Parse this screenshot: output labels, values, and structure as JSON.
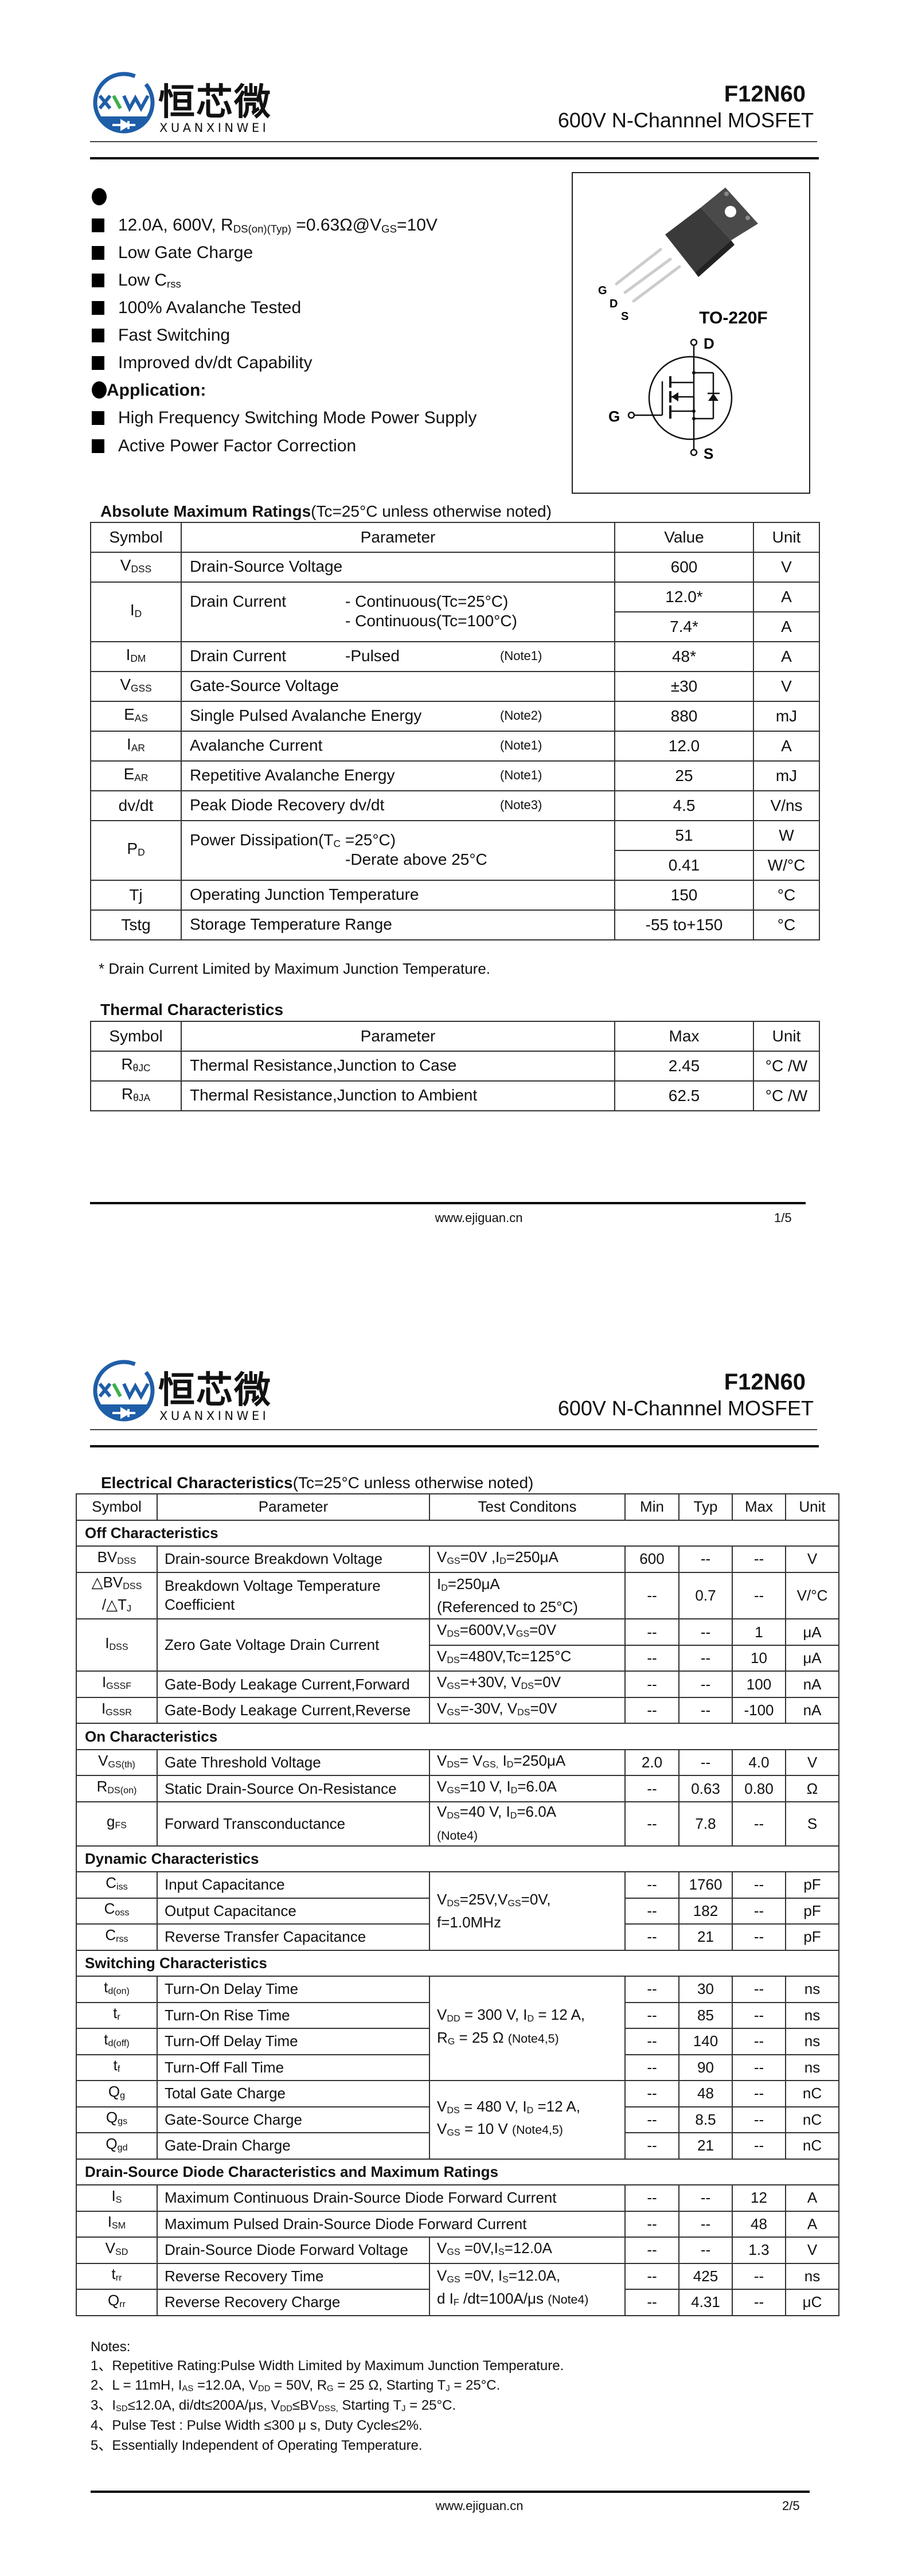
{
  "brand": {
    "name_cn": "恒芯微",
    "name_en": "XUANXINWEI",
    "logo_letters": "XW",
    "colors": {
      "blue": "#1f5ea8",
      "green": "#3cb04a"
    }
  },
  "pages": [
    {
      "header": {
        "part": "F12N60",
        "subtitle": "600V N-Channnel MOSFET"
      },
      "footer": {
        "url": "www.ejiguan.cn",
        "page": "1/5"
      }
    },
    {
      "header": {
        "part": "F12N60",
        "subtitle": "600V N-Channnel MOSFET"
      },
      "footer": {
        "url": "www.ejiguan.cn",
        "page": "2/5"
      }
    }
  ],
  "features": {
    "items": [
      [
        "12.0A, 600V, R",
        {
          "sub": "DS(on)(Typ)"
        },
        " =0.63Ω@V",
        {
          "sub": "GS"
        },
        "=10V"
      ],
      [
        "Low Gate Charge"
      ],
      [
        "Low C",
        {
          "sub": "rss"
        }
      ],
      [
        "100% Avalanche Tested"
      ],
      [
        "Fast Switching"
      ],
      [
        "Improved dv/dt Capability"
      ]
    ]
  },
  "application": {
    "title": "Application:",
    "items": [
      [
        "High Frequency Switching Mode Power Supply"
      ],
      [
        "Active Power Factor Correction"
      ]
    ]
  },
  "package": {
    "name": "TO-220F",
    "pins": [
      "G",
      "D",
      "S"
    ],
    "schematic": {
      "drain": "D",
      "gate": "G",
      "source": "S"
    }
  },
  "abs_max": {
    "title": "Absolute Maximum Ratings",
    "condition": "(Tc=25°C unless otherwise noted)",
    "headers": [
      "Symbol",
      "Parameter",
      "Value",
      "Unit"
    ],
    "rows": [
      {
        "sym": [
          "V",
          {
            "sub": "DSS"
          }
        ],
        "param": [
          {
            "main": "Drain-Source Voltage"
          }
        ],
        "values": [
          {
            "v": "600",
            "u": "V"
          }
        ]
      },
      {
        "sym": [
          "I",
          {
            "sub": "D"
          }
        ],
        "param": [
          {
            "main": "Drain Current",
            "detail": "- Continuous(Tc=25°C)"
          },
          {
            "detail": "- Continuous(Tc=100°C)"
          }
        ],
        "values": [
          {
            "v": "12.0*",
            "u": "A"
          },
          {
            "v": "7.4*",
            "u": "A"
          }
        ]
      },
      {
        "sym": [
          "I",
          {
            "sub": "DM"
          }
        ],
        "param": [
          {
            "main": "Drain Current",
            "detail": "-Pulsed",
            "note": "(Note1)"
          }
        ],
        "values": [
          {
            "v": "48*",
            "u": "A"
          }
        ]
      },
      {
        "sym": [
          "V",
          {
            "sub": "GSS"
          }
        ],
        "param": [
          {
            "main": "Gate-Source Voltage"
          }
        ],
        "values": [
          {
            "v": "±30",
            "u": "V"
          }
        ]
      },
      {
        "sym": [
          "E",
          {
            "sub": "AS"
          }
        ],
        "param": [
          {
            "main": "Single Pulsed Avalanche Energy",
            "note": "(Note2)"
          }
        ],
        "values": [
          {
            "v": "880",
            "u": "mJ"
          }
        ]
      },
      {
        "sym": [
          "I",
          {
            "sub": "AR"
          }
        ],
        "param": [
          {
            "main": "Avalanche Current",
            "note": "(Note1)"
          }
        ],
        "values": [
          {
            "v": "12.0",
            "u": "A"
          }
        ]
      },
      {
        "sym": [
          "E",
          {
            "sub": "AR"
          }
        ],
        "param": [
          {
            "main": "Repetitive Avalanche Energy",
            "note": "(Note1)"
          }
        ],
        "values": [
          {
            "v": "25",
            "u": "mJ"
          }
        ]
      },
      {
        "sym": [
          "dv/dt"
        ],
        "param": [
          {
            "main": "Peak Diode Recovery dv/dt",
            "note": "(Note3)"
          }
        ],
        "values": [
          {
            "v": "4.5",
            "u": "V/ns"
          }
        ]
      },
      {
        "sym": [
          "P",
          {
            "sub": "D"
          }
        ],
        "param": [
          {
            "main": [
              "Power Dissipation(T",
              {
                "sub": "C"
              },
              " =25°C)"
            ]
          },
          {
            "detail": "-Derate above 25°C"
          }
        ],
        "values": [
          {
            "v": "51",
            "u": "W"
          },
          {
            "v": "0.41",
            "u": "W/°C"
          }
        ]
      },
      {
        "sym": [
          "Tj"
        ],
        "param": [
          {
            "main": "Operating Junction Temperature"
          }
        ],
        "values": [
          {
            "v": "150",
            "u": "°C"
          }
        ]
      },
      {
        "sym": [
          "Tstg"
        ],
        "param": [
          {
            "main": "Storage Temperature Range"
          }
        ],
        "values": [
          {
            "v": "-55 to+150",
            "u": "°C"
          }
        ]
      }
    ],
    "footnote": "* Drain Current Limited by Maximum Junction Temperature."
  },
  "thermal": {
    "title": "Thermal Characteristics",
    "headers": [
      "Symbol",
      "Parameter",
      "Max",
      "Unit"
    ],
    "rows": [
      {
        "sym": [
          "R",
          {
            "sub": "θJC"
          }
        ],
        "param": [
          {
            "main": "Thermal Resistance,Junction to Case"
          }
        ],
        "values": [
          {
            "v": "2.45",
            "u": "°C /W"
          }
        ]
      },
      {
        "sym": [
          "R",
          {
            "sub": "θJA"
          }
        ],
        "param": [
          {
            "main": "Thermal Resistance,Junction to Ambient"
          }
        ],
        "values": [
          {
            "v": "62.5",
            "u": "°C /W"
          }
        ]
      }
    ]
  },
  "electrical": {
    "title": "Electrical Characteristics",
    "condition": "(Tc=25°C unless otherwise noted)",
    "headers": [
      "Symbol",
      "Parameter",
      "Test Conditons",
      "Min",
      "Typ",
      "Max",
      "Unit"
    ],
    "rows": [
      {
        "section": "Off Characteristics"
      },
      {
        "sym": [
          "BV",
          {
            "sub": "DSS"
          }
        ],
        "param": [
          "Drain-source Breakdown Voltage"
        ],
        "cond": [
          "V",
          {
            "sub": "GS"
          },
          "=0V ,I",
          {
            "sub": "D"
          },
          "=250μA"
        ],
        "min": "600",
        "typ": "--",
        "max": "--",
        "unit": "V"
      },
      {
        "sym": [
          "△BV",
          {
            "sub": "DSS"
          },
          {
            "br": true
          },
          "/△T",
          {
            "sub": "J"
          }
        ],
        "param": [
          "Breakdown Voltage Temperature",
          {
            "br": true
          },
          "Coefficient"
        ],
        "cond": [
          "I",
          {
            "sub": "D"
          },
          "=250μA",
          {
            "br": true
          },
          "(Referenced to 25°C)"
        ],
        "min": "--",
        "typ": "0.7",
        "max": "--",
        "unit": "V/°C"
      },
      {
        "sym": [
          "I",
          {
            "sub": "DSS"
          }
        ],
        "param": [
          "Zero Gate Voltage Drain Current"
        ],
        "sub_rows": [
          {
            "cond": [
              "V",
              {
                "sub": "DS"
              },
              "=600V,V",
              {
                "sub": "GS"
              },
              "=0V"
            ],
            "min": "--",
            "typ": "--",
            "max": "1",
            "unit": "μA"
          },
          {
            "cond": [
              "V",
              {
                "sub": "DS"
              },
              "=480V,Tc=125°C"
            ],
            "min": "--",
            "typ": "--",
            "max": "10",
            "unit": "μA"
          }
        ]
      },
      {
        "sym": [
          "I",
          {
            "sub": "GSSF"
          }
        ],
        "param": [
          "Gate-Body Leakage Current,Forward"
        ],
        "cond": [
          "V",
          {
            "sub": "GS"
          },
          "=+30V, V",
          {
            "sub": "DS"
          },
          "=0V"
        ],
        "min": "--",
        "typ": "--",
        "max": "100",
        "unit": "nA"
      },
      {
        "sym": [
          "I",
          {
            "sub": "GSSR"
          }
        ],
        "param": [
          "Gate-Body Leakage Current,Reverse"
        ],
        "cond": [
          "V",
          {
            "sub": "GS"
          },
          "=-30V, V",
          {
            "sub": "DS"
          },
          "=0V"
        ],
        "min": "--",
        "typ": "--",
        "max": "-100",
        "unit": "nA"
      },
      {
        "section": "On Characteristics"
      },
      {
        "sym": [
          "V",
          {
            "sub": "GS(th)"
          }
        ],
        "param": [
          "Gate Threshold Voltage"
        ],
        "cond": [
          "V",
          {
            "sub": "DS"
          },
          "= V",
          {
            "sub": "GS,"
          },
          " I",
          {
            "sub": "D"
          },
          "=250μA"
        ],
        "min": "2.0",
        "typ": "--",
        "max": "4.0",
        "unit": "V"
      },
      {
        "sym": [
          "R",
          {
            "sub": "DS(on)"
          }
        ],
        "param": [
          "Static Drain-Source On-Resistance"
        ],
        "cond": [
          "V",
          {
            "sub": "GS"
          },
          "=10 V, I",
          {
            "sub": "D"
          },
          "=6.0A"
        ],
        "min": "--",
        "typ": "0.63",
        "max": "0.80",
        "unit": "Ω"
      },
      {
        "sym": [
          "g",
          {
            "sub": "FS"
          }
        ],
        "param": [
          "Forward Transconductance"
        ],
        "cond": [
          "V",
          {
            "sub": "DS"
          },
          "=40 V, I",
          {
            "sub": "D"
          },
          "=6.0A",
          {
            "br": true
          },
          {
            "note": "(Note4)"
          }
        ],
        "min": "--",
        "typ": "7.8",
        "max": "--",
        "unit": "S"
      },
      {
        "section": "Dynamic Characteristics"
      },
      {
        "sym": [
          "C",
          {
            "sub": "iss"
          }
        ],
        "param": [
          "Input Capacitance"
        ],
        "cond": [
          "V",
          {
            "sub": "DS"
          },
          "=25V,V",
          {
            "sub": "GS"
          },
          "=0V,",
          {
            "br": true
          },
          "f=1.0MHz"
        ],
        "cond_span": 3,
        "min": "--",
        "typ": "1760",
        "max": "--",
        "unit": "pF"
      },
      {
        "sym": [
          "C",
          {
            "sub": "oss"
          }
        ],
        "param": [
          "Output Capacitance"
        ],
        "min": "--",
        "typ": "182",
        "max": "--",
        "unit": "pF"
      },
      {
        "sym": [
          "C",
          {
            "sub": "rss"
          }
        ],
        "param": [
          "Reverse Transfer Capacitance"
        ],
        "min": "--",
        "typ": "21",
        "max": "--",
        "unit": "pF"
      },
      {
        "section": "Switching Characteristics"
      },
      {
        "sym": [
          "t",
          {
            "sub": "d(on)"
          }
        ],
        "param": [
          "Turn-On Delay Time"
        ],
        "cond": [
          "V",
          {
            "sub": "DD"
          },
          " = 300 V, I",
          {
            "sub": "D"
          },
          " = 12 A,",
          {
            "br": true
          },
          "R",
          {
            "sub": "G"
          },
          " = 25 Ω    ",
          {
            "note": "(Note4,5)"
          }
        ],
        "cond_span": 4,
        "min": "--",
        "typ": "30",
        "max": "--",
        "unit": "ns"
      },
      {
        "sym": [
          "t",
          {
            "sub": "r"
          }
        ],
        "param": [
          "Turn-On Rise Time"
        ],
        "min": "--",
        "typ": "85",
        "max": "--",
        "unit": "ns"
      },
      {
        "sym": [
          "t",
          {
            "sub": "d(off)"
          }
        ],
        "param": [
          "Turn-Off Delay Time"
        ],
        "min": "--",
        "typ": "140",
        "max": "--",
        "unit": "ns"
      },
      {
        "sym": [
          "t",
          {
            "sub": "f"
          }
        ],
        "param": [
          "Turn-Off Fall Time"
        ],
        "min": "--",
        "typ": "90",
        "max": "--",
        "unit": "ns"
      },
      {
        "sym": [
          "Q",
          {
            "sub": "g"
          }
        ],
        "param": [
          "Total Gate Charge"
        ],
        "cond": [
          "V",
          {
            "sub": "DS"
          },
          " = 480 V, I",
          {
            "sub": "D"
          },
          " =12 A,",
          {
            "br": true
          },
          "V",
          {
            "sub": "GS"
          },
          " = 10 V   ",
          {
            "note": "(Note4,5)"
          }
        ],
        "cond_span": 3,
        "min": "--",
        "typ": "48",
        "max": "--",
        "unit": "nC"
      },
      {
        "sym": [
          "Q",
          {
            "sub": "gs"
          }
        ],
        "param": [
          "Gate-Source Charge"
        ],
        "min": "--",
        "typ": "8.5",
        "max": "--",
        "unit": "nC"
      },
      {
        "sym": [
          "Q",
          {
            "sub": "gd"
          }
        ],
        "param": [
          "Gate-Drain Charge"
        ],
        "min": "--",
        "typ": "21",
        "max": "--",
        "unit": "nC"
      },
      {
        "section": "Drain-Source Diode Characteristics and Maximum Ratings"
      },
      {
        "sym": [
          "I",
          {
            "sub": "S"
          }
        ],
        "param": [
          "Maximum Continuous Drain-Source Diode Forward Current"
        ],
        "param_spans_conditions": true,
        "min": "--",
        "typ": "--",
        "max": "12",
        "unit": "A"
      },
      {
        "sym": [
          "I",
          {
            "sub": "SM"
          }
        ],
        "param": [
          "Maximum Pulsed Drain-Source Diode Forward Current"
        ],
        "param_spans_conditions": true,
        "min": "--",
        "typ": "--",
        "max": "48",
        "unit": "A"
      },
      {
        "sym": [
          "V",
          {
            "sub": "SD"
          }
        ],
        "param": [
          "Drain-Source Diode Forward Voltage"
        ],
        "cond": [
          "V",
          {
            "sub": "GS"
          },
          " =0V,I",
          {
            "sub": "S"
          },
          "=12.0A"
        ],
        "min": "--",
        "typ": "--",
        "max": "1.3",
        "unit": "V"
      },
      {
        "sym": [
          "t",
          {
            "sub": "rr"
          }
        ],
        "param": [
          "Reverse Recovery Time"
        ],
        "cond": [
          "V",
          {
            "sub": "GS"
          },
          " =0V, I",
          {
            "sub": "S"
          },
          "=12.0A,",
          {
            "br": true
          },
          "d I",
          {
            "sub": "F"
          },
          " /dt=100A/μs ",
          {
            "note": "(Note4)"
          }
        ],
        "cond_span": 2,
        "min": "--",
        "typ": "425",
        "max": "--",
        "unit": "ns"
      },
      {
        "sym": [
          "Q",
          {
            "sub": "rr"
          }
        ],
        "param": [
          "Reverse Recovery Charge"
        ],
        "min": "--",
        "typ": "4.31",
        "max": "--",
        "unit": "μC"
      }
    ]
  },
  "notes": {
    "title": "Notes:",
    "items": [
      [
        "1、Repetitive Rating:Pulse Width Limited by Maximum Junction Temperature."
      ],
      [
        "2、L = 11mH, I",
        {
          "sub": "AS"
        },
        " =12.0A, V",
        {
          "sub": "DD"
        },
        " = 50V, R",
        {
          "sub": "G"
        },
        " = 25 Ω, Starting T",
        {
          "sub": "J"
        },
        " = 25°C."
      ],
      [
        "3、I",
        {
          "sub": "SD"
        },
        "≤12.0A, di/dt≤200A/μs, V",
        {
          "sub": "DD"
        },
        "≤BV",
        {
          "sub": "DSS,"
        },
        " Starting T",
        {
          "sub": "J"
        },
        " = 25°C."
      ],
      [
        "4、Pulse Test : Pulse Width ≤300 μ s, Duty Cycle≤2%."
      ],
      [
        "5、Essentially Independent of Operating Temperature."
      ]
    ]
  }
}
